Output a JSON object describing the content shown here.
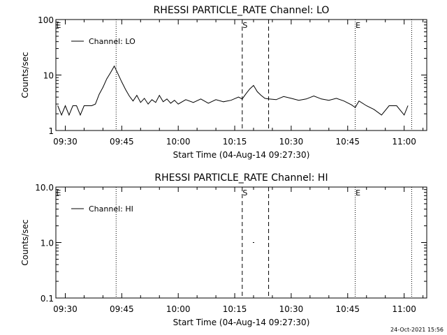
{
  "footer_timestamp": "24-Oct-2021 15:56",
  "chart_data": [
    {
      "type": "line",
      "title": "RHESSI PARTICLE_RATE Channel: LO",
      "xlabel": "Start Time (04-Aug-14 09:27:30)",
      "ylabel": "Counts/sec",
      "yscale": "log",
      "ylim": [
        1,
        100
      ],
      "xlim": [
        "09:27:30",
        "11:06:00"
      ],
      "xticks": [
        "09:30",
        "09:45",
        "10:00",
        "10:15",
        "10:30",
        "10:45",
        "11:00"
      ],
      "yticks": [
        "1",
        "10",
        "100"
      ],
      "legend": {
        "position": "top-left",
        "entries": [
          "Channel: LO"
        ]
      },
      "markers": [
        {
          "label": "E",
          "time": "09:27:30",
          "style": "label"
        },
        {
          "label": "",
          "time": "09:43:30",
          "style": "dotted"
        },
        {
          "label": "S",
          "time": "10:17:00",
          "style": "dashed"
        },
        {
          "label": "",
          "time": "10:24:00",
          "style": "dashed"
        },
        {
          "label": "E",
          "time": "10:47:00",
          "style": "dotted"
        },
        {
          "label": "",
          "time": "11:02:00",
          "style": "dotted"
        }
      ],
      "series": [
        {
          "name": "Channel: LO",
          "x": [
            "09:28",
            "09:29",
            "09:30",
            "09:31",
            "09:32",
            "09:33",
            "09:34",
            "09:35",
            "09:36",
            "09:37",
            "09:38",
            "09:39",
            "09:40",
            "09:41",
            "09:42",
            "09:43",
            "09:44",
            "09:45",
            "09:46",
            "09:47",
            "09:48",
            "09:49",
            "09:50",
            "09:51",
            "09:52",
            "09:53",
            "09:54",
            "09:55",
            "09:56",
            "09:57",
            "09:58",
            "09:59",
            "10:00",
            "10:02",
            "10:04",
            "10:06",
            "10:08",
            "10:10",
            "10:12",
            "10:14",
            "10:16",
            "10:17",
            "10:18",
            "10:19",
            "10:20",
            "10:21",
            "10:22",
            "10:23",
            "10:24",
            "10:26",
            "10:28",
            "10:30",
            "10:32",
            "10:34",
            "10:36",
            "10:38",
            "10:40",
            "10:42",
            "10:44",
            "10:46",
            "10:47",
            "10:48",
            "10:50",
            "10:52",
            "10:54",
            "10:56",
            "10:58",
            "11:00",
            "11:01"
          ],
          "y": [
            2.8,
            1.9,
            2.8,
            1.9,
            2.8,
            2.8,
            1.9,
            2.8,
            2.8,
            2.8,
            3.0,
            4.5,
            6.0,
            8.5,
            11.0,
            14.5,
            10.5,
            7.5,
            5.5,
            4.2,
            3.4,
            4.3,
            3.2,
            3.8,
            3.0,
            3.6,
            3.2,
            4.3,
            3.3,
            3.7,
            3.1,
            3.5,
            3.0,
            3.6,
            3.2,
            3.7,
            3.1,
            3.6,
            3.3,
            3.5,
            4.0,
            3.7,
            4.6,
            5.6,
            6.5,
            5.0,
            4.3,
            3.8,
            3.7,
            3.6,
            4.1,
            3.8,
            3.5,
            3.7,
            4.2,
            3.7,
            3.5,
            3.8,
            3.4,
            2.9,
            2.6,
            3.4,
            2.8,
            2.4,
            1.9,
            2.8,
            2.8,
            1.9,
            2.8
          ]
        }
      ]
    },
    {
      "type": "line",
      "title": "RHESSI PARTICLE_RATE Channel: HI",
      "xlabel": "Start Time (04-Aug-14 09:27:30)",
      "ylabel": "Counts/sec",
      "yscale": "log",
      "ylim": [
        0.1,
        10
      ],
      "xlim": [
        "09:27:30",
        "11:06:00"
      ],
      "xticks": [
        "09:30",
        "09:45",
        "10:00",
        "10:15",
        "10:30",
        "10:45",
        "11:00"
      ],
      "yticks": [
        "0.1",
        "1.0",
        "10.0"
      ],
      "legend": {
        "position": "top-left",
        "entries": [
          "Channel: HI"
        ]
      },
      "markers": [
        {
          "label": "E",
          "time": "09:27:30",
          "style": "label"
        },
        {
          "label": "",
          "time": "09:43:30",
          "style": "dotted"
        },
        {
          "label": "S",
          "time": "10:17:00",
          "style": "dashed"
        },
        {
          "label": "",
          "time": "10:24:00",
          "style": "dashed"
        },
        {
          "label": "E",
          "time": "10:47:00",
          "style": "dotted"
        },
        {
          "label": "",
          "time": "11:02:00",
          "style": "dotted"
        }
      ],
      "series": [
        {
          "name": "Channel: HI",
          "x": [
            "10:20"
          ],
          "y": [
            1.0
          ]
        }
      ]
    }
  ]
}
